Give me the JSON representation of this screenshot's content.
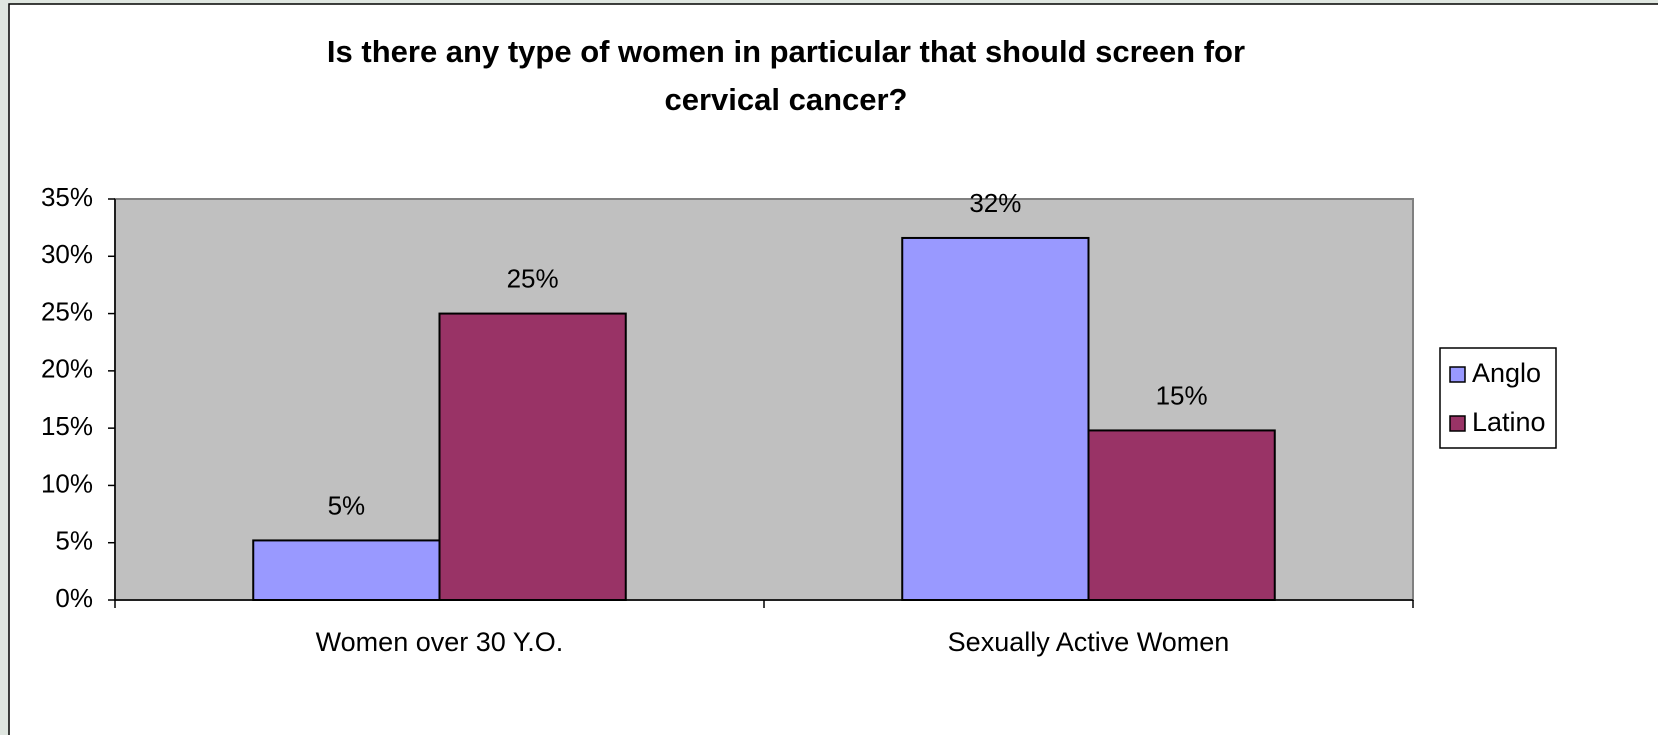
{
  "chart_data": {
    "type": "bar",
    "title": [
      "Is there any type of women in particular that should screen for",
      "cervical cancer?"
    ],
    "categories": [
      "Women over 30 Y.O.",
      "Sexually Active Women"
    ],
    "series": [
      {
        "name": "Anglo",
        "color": "#9999ff",
        "values": [
          5.2,
          31.6
        ],
        "value_labels": [
          "5%",
          "32%"
        ]
      },
      {
        "name": "Latino",
        "color": "#993366",
        "values": [
          25,
          14.8
        ],
        "value_labels": [
          "25%",
          "15%"
        ]
      }
    ],
    "ylim": [
      0,
      35
    ],
    "yticks": [
      {
        "value": 0,
        "label": "0%"
      },
      {
        "value": 5,
        "label": "5%"
      },
      {
        "value": 10,
        "label": "10%"
      },
      {
        "value": 15,
        "label": "15%"
      },
      {
        "value": 20,
        "label": "20%"
      },
      {
        "value": 25,
        "label": "25%"
      },
      {
        "value": 30,
        "label": "30%"
      },
      {
        "value": 35,
        "label": "35%"
      }
    ],
    "plot_background": "#c0c0c0",
    "legend": "right"
  }
}
